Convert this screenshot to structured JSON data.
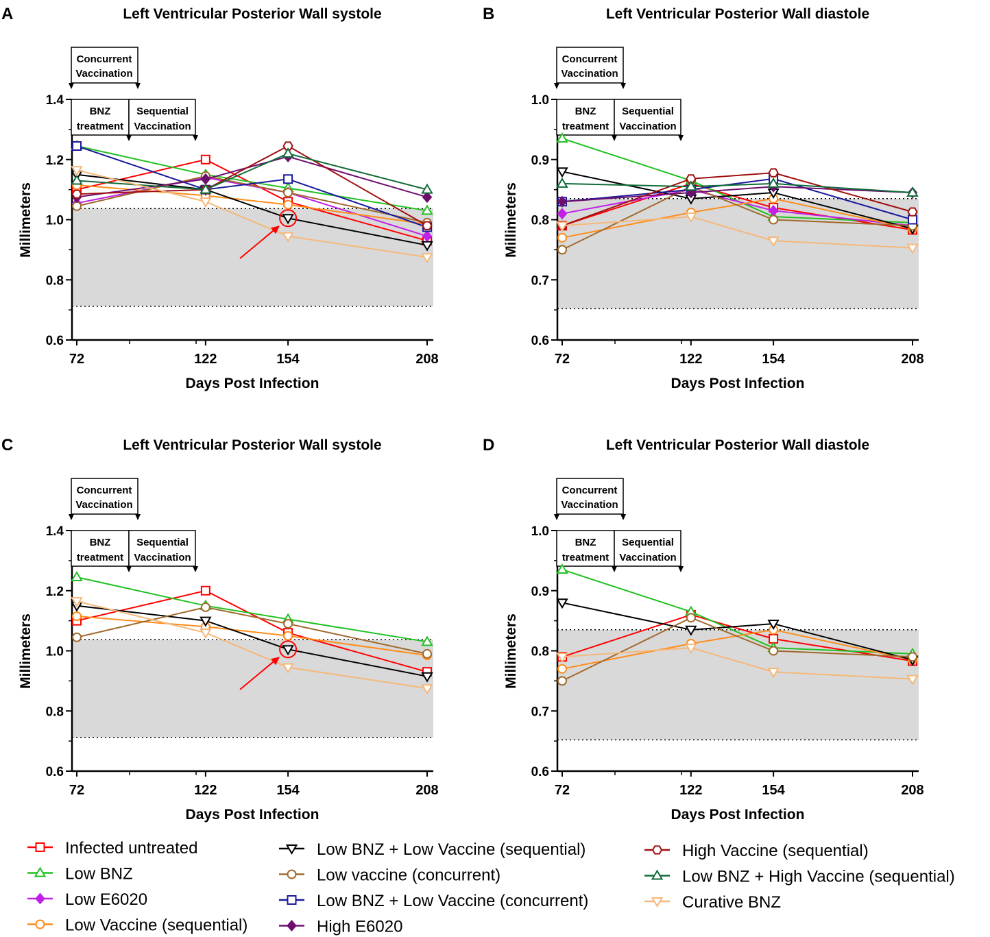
{
  "figure": {
    "days_axis_label": "Days Post Infection",
    "y_axis_label": "Millimeters",
    "annotations": {
      "concurrent_line1": "Concurrent",
      "concurrent_line2": "Vaccination",
      "bnz_line1": "BNZ",
      "bnz_line2": "treatment",
      "sequential_line1": "Sequential",
      "sequential_line2": "Vaccination"
    }
  },
  "series_styles": {
    "infected": {
      "name": "Infected untreated",
      "color": "#ff0000",
      "marker": "square",
      "filled": false
    },
    "lowbnz": {
      "name": "Low BNZ",
      "color": "#22c122",
      "marker": "triangle",
      "filled": false
    },
    "lowe6020": {
      "name": "Low E6020",
      "color": "#c020e8",
      "marker": "diamond",
      "filled": true
    },
    "lowvacseq": {
      "name": "Low Vaccine (sequential)",
      "color": "#ff8c1a",
      "marker": "circle",
      "filled": false
    },
    "lbnzlvseq": {
      "name": "Low BNZ + Low Vaccine (sequential)",
      "color": "#000000",
      "marker": "tridown",
      "filled": false
    },
    "lowvacconc": {
      "name": "Low vaccine (concurrent)",
      "color": "#a0692c",
      "marker": "circle",
      "filled": false
    },
    "lbnzlvconc": {
      "name": "Low BNZ + Low Vaccine (concurrent)",
      "color": "#1a1a9c",
      "marker": "square",
      "filled": false
    },
    "highe6020": {
      "name": "High E6020",
      "color": "#6e0f6e",
      "marker": "diamond",
      "filled": true
    },
    "highvacseq": {
      "name": "High Vaccine (sequential)",
      "color": "#a01010",
      "marker": "hexagon",
      "filled": false
    },
    "lbnzhvseq": {
      "name": "Low BNZ + High Vaccine (sequential)",
      "color": "#126b3a",
      "marker": "triangle",
      "filled": false
    },
    "curative": {
      "name": "Curative BNZ",
      "color": "#f5b87a",
      "marker": "tridown",
      "filled": false
    }
  },
  "legend": {
    "col1": [
      "Infected untreated",
      "Low BNZ",
      "Low E6020",
      "Low Vaccine (sequential)"
    ],
    "col2": [
      "Low BNZ + Low Vaccine (sequential)",
      "Low vaccine (concurrent)",
      "Low BNZ + Low Vaccine (concurrent)",
      "High E6020"
    ],
    "col3": [
      "High Vaccine (sequential)",
      "Low BNZ + High Vaccine (sequential)",
      "Curative BNZ"
    ]
  },
  "chart_data": [
    {
      "panel": "A",
      "type": "line",
      "title": "Left  Ventricular  Posterior  Wall systole",
      "xlabel": "Days Post Infection",
      "ylabel": "Millimeters",
      "x": [
        72,
        122,
        154,
        208
      ],
      "x_ticks": [
        "72",
        "122",
        "154",
        "208"
      ],
      "ylim": [
        0.6,
        1.4
      ],
      "y_ticks": [
        "0.6",
        "0.8",
        "1.0",
        "1.2",
        "1.4"
      ],
      "normal_range": [
        0.712,
        1.037
      ],
      "highlight_x": 154,
      "highlight_y": 1.005,
      "series": [
        {
          "key": "infected",
          "values": [
            1.1,
            1.2,
            1.06,
            0.93
          ]
        },
        {
          "key": "lowbnz",
          "values": [
            1.245,
            1.15,
            1.105,
            1.03
          ]
        },
        {
          "key": "lowe6020",
          "values": [
            1.055,
            1.14,
            1.09,
            0.945
          ]
        },
        {
          "key": "lowvacseq",
          "values": [
            1.115,
            1.08,
            1.05,
            0.985
          ]
        },
        {
          "key": "lbnzlvseq",
          "values": [
            1.15,
            1.1,
            1.005,
            0.915
          ]
        },
        {
          "key": "lowvacconc",
          "values": [
            1.045,
            1.145,
            1.09,
            0.99
          ]
        },
        {
          "key": "lbnzlvconc",
          "values": [
            1.245,
            1.1,
            1.135,
            0.975
          ]
        },
        {
          "key": "highe6020",
          "values": [
            1.075,
            1.135,
            1.21,
            1.075
          ]
        },
        {
          "key": "highvacseq",
          "values": [
            1.085,
            1.1,
            1.245,
            0.98
          ]
        },
        {
          "key": "lbnzhvseq",
          "values": [
            1.13,
            1.1,
            1.22,
            1.1
          ]
        },
        {
          "key": "curative",
          "values": [
            1.165,
            1.06,
            0.945,
            0.875
          ]
        }
      ]
    },
    {
      "panel": "B",
      "type": "line",
      "title": "Left  Ventricular  Posterior Wall diastole",
      "xlabel": "Days Post Infection",
      "ylabel": "Millimeters",
      "x": [
        72,
        122,
        154,
        208
      ],
      "x_ticks": [
        "72",
        "122",
        "154",
        "208"
      ],
      "ylim": [
        0.6,
        1.0
      ],
      "y_ticks": [
        "0.6",
        "0.7",
        "0.8",
        "0.9",
        "1.0"
      ],
      "normal_range": [
        0.652,
        0.835
      ],
      "series": [
        {
          "key": "infected",
          "values": [
            0.79,
            0.86,
            0.82,
            0.783
          ]
        },
        {
          "key": "lowbnz",
          "values": [
            0.935,
            0.865,
            0.805,
            0.795
          ]
        },
        {
          "key": "lowe6020",
          "values": [
            0.81,
            0.85,
            0.815,
            0.79
          ]
        },
        {
          "key": "lowvacseq",
          "values": [
            0.77,
            0.812,
            0.835,
            0.785
          ]
        },
        {
          "key": "lbnzlvseq",
          "values": [
            0.88,
            0.835,
            0.845,
            0.785
          ]
        },
        {
          "key": "lowvacconc",
          "values": [
            0.75,
            0.855,
            0.8,
            0.79
          ]
        },
        {
          "key": "lbnzlvconc",
          "values": [
            0.83,
            0.85,
            0.868,
            0.8
          ]
        },
        {
          "key": "highe6020",
          "values": [
            0.83,
            0.845,
            0.855,
            0.845
          ]
        },
        {
          "key": "highvacseq",
          "values": [
            0.79,
            0.868,
            0.878,
            0.813
          ]
        },
        {
          "key": "lbnzhvseq",
          "values": [
            0.86,
            0.855,
            0.86,
            0.845
          ]
        },
        {
          "key": "curative",
          "values": [
            0.79,
            0.805,
            0.765,
            0.753
          ]
        }
      ]
    },
    {
      "panel": "C",
      "type": "line",
      "title": "Left  Ventricular  Posterior  Wall systole",
      "xlabel": "Days Post Infection",
      "ylabel": "Millimeters",
      "x": [
        72,
        122,
        154,
        208
      ],
      "x_ticks": [
        "72",
        "122",
        "154",
        "208"
      ],
      "ylim": [
        0.6,
        1.4
      ],
      "y_ticks": [
        "0.6",
        "0.8",
        "1.0",
        "1.2",
        "1.4"
      ],
      "normal_range": [
        0.712,
        1.037
      ],
      "highlight_x": 154,
      "highlight_y": 1.005,
      "series": [
        {
          "key": "infected",
          "values": [
            1.1,
            1.2,
            1.06,
            0.93
          ]
        },
        {
          "key": "lowbnz",
          "values": [
            1.245,
            1.15,
            1.105,
            1.03
          ]
        },
        {
          "key": "lowvacseq",
          "values": [
            1.115,
            1.08,
            1.05,
            0.985
          ]
        },
        {
          "key": "lbnzlvseq",
          "values": [
            1.15,
            1.1,
            1.005,
            0.915
          ]
        },
        {
          "key": "lowvacconc",
          "values": [
            1.045,
            1.145,
            1.09,
            0.99
          ]
        },
        {
          "key": "curative",
          "values": [
            1.165,
            1.06,
            0.945,
            0.875
          ]
        }
      ]
    },
    {
      "panel": "D",
      "type": "line",
      "title": "Left  Ventricular  Posterior Wall diastole",
      "xlabel": "Days Post Infection",
      "ylabel": "Millimeters",
      "x": [
        72,
        122,
        154,
        208
      ],
      "x_ticks": [
        "72",
        "122",
        "154",
        "208"
      ],
      "ylim": [
        0.6,
        1.0
      ],
      "y_ticks": [
        "0.6",
        "0.7",
        "0.8",
        "0.9",
        "1.0"
      ],
      "normal_range": [
        0.652,
        0.835
      ],
      "series": [
        {
          "key": "infected",
          "values": [
            0.79,
            0.86,
            0.82,
            0.783
          ]
        },
        {
          "key": "lowbnz",
          "values": [
            0.935,
            0.865,
            0.805,
            0.795
          ]
        },
        {
          "key": "lowvacseq",
          "values": [
            0.77,
            0.812,
            0.835,
            0.785
          ]
        },
        {
          "key": "lbnzlvseq",
          "values": [
            0.88,
            0.835,
            0.845,
            0.785
          ]
        },
        {
          "key": "lowvacconc",
          "values": [
            0.75,
            0.855,
            0.8,
            0.79
          ]
        },
        {
          "key": "curative",
          "values": [
            0.79,
            0.805,
            0.765,
            0.753
          ]
        }
      ]
    }
  ]
}
